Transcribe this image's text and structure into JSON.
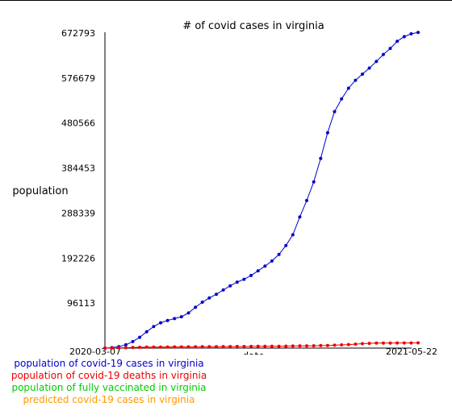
{
  "chart_data": {
    "type": "line",
    "title": "# of covid cases in virginia",
    "xlabel": "date",
    "ylabel": "population",
    "x_tick_labels": [
      "2020-03-07",
      "2021-05-22"
    ],
    "y_tick_labels": [
      "96113",
      "192226",
      "288339",
      "384453",
      "480566",
      "576679",
      "672793"
    ],
    "ylim": [
      0,
      672793
    ],
    "grid": false,
    "legend_position": "bottom-left",
    "series": [
      {
        "name": "population of covid-19 cases in virginia",
        "color": "#0000cc",
        "values": [
          0,
          1000,
          3000,
          7000,
          14000,
          23000,
          35000,
          46000,
          54000,
          59000,
          63000,
          67000,
          75000,
          87000,
          98000,
          107000,
          115000,
          124000,
          133000,
          141000,
          147000,
          155000,
          165000,
          175000,
          186000,
          200000,
          219000,
          242000,
          280000,
          315000,
          355000,
          405000,
          460000,
          505000,
          532000,
          555000,
          572000,
          585000,
          598000,
          612000,
          627000,
          640000,
          655000,
          665000,
          671000,
          674000
        ]
      },
      {
        "name": "population of covid-19 deaths in virginia",
        "color": "#ee0000",
        "values": [
          0,
          100,
          300,
          800,
          1200,
          1700,
          2000,
          2200,
          2300,
          2400,
          2500,
          2600,
          2700,
          2800,
          2900,
          3000,
          3100,
          3200,
          3300,
          3400,
          3500,
          3600,
          3700,
          3800,
          3900,
          4000,
          4200,
          4400,
          4600,
          4800,
          5000,
          5300,
          5700,
          6200,
          6800,
          7500,
          8500,
          9500,
          10200,
          10600,
          10800,
          10900,
          11000,
          11000,
          11000,
          11100
        ]
      },
      {
        "name": "population of fully vaccinated in virginia",
        "color": "#00cc00",
        "values": []
      },
      {
        "name": "predicted covid-19 cases in virginia",
        "color": "#ff9900",
        "values": []
      }
    ]
  }
}
